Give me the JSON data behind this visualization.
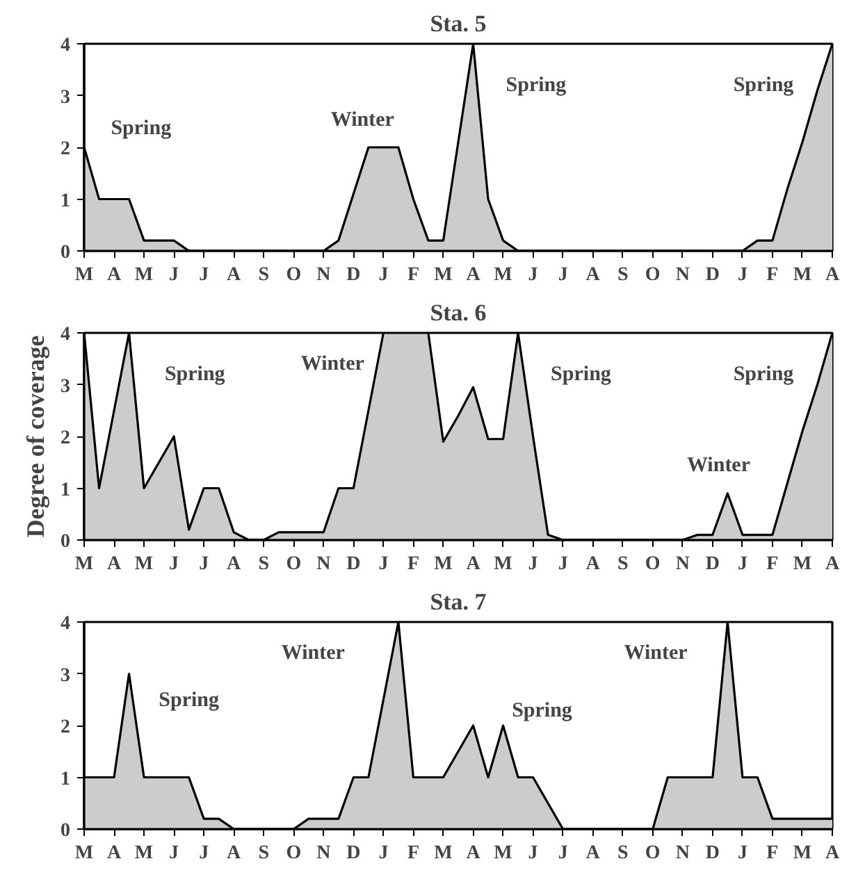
{
  "chart_data": [
    {
      "type": "area",
      "title": "Sta. 5",
      "grid": false,
      "color": "#cccccc",
      "categories": [
        "M",
        null,
        "A",
        null,
        "M",
        null,
        "J",
        null,
        "J",
        null,
        "A",
        null,
        "S",
        null,
        "O",
        null,
        "N",
        null,
        "D",
        null,
        "J",
        null,
        "F",
        null,
        "M",
        null,
        "A",
        null,
        "M",
        null,
        "J",
        null,
        "J",
        null,
        "A",
        null,
        "S",
        null,
        "O",
        null,
        "N",
        null,
        "D",
        null,
        "J",
        null,
        "F",
        null,
        "M",
        null,
        "A"
      ],
      "values": [
        2,
        1,
        1,
        1,
        0.2,
        0.2,
        0.2,
        0,
        0,
        0,
        0,
        0,
        0,
        0,
        0,
        0,
        0,
        0.2,
        1.1,
        2,
        2,
        2,
        1,
        0.2,
        0.2,
        2.1,
        4,
        1,
        0.2,
        0,
        0,
        0,
        0,
        0,
        0,
        0,
        0,
        0,
        0,
        0,
        0,
        0,
        0,
        0,
        0,
        0.2,
        0.2,
        1.2,
        2.1,
        3.1,
        4
      ],
      "ylim": [
        0,
        4
      ],
      "yticks": [
        0,
        1,
        2,
        3,
        4
      ],
      "annotations": [
        "Spring",
        "Winter",
        "Spring",
        "Spring"
      ]
    },
    {
      "type": "area",
      "title": "Sta. 6",
      "ylabel": "Degree of coverage",
      "grid": false,
      "color": "#cccccc",
      "categories": [
        "M",
        null,
        "A",
        null,
        "M",
        null,
        "J",
        null,
        "J",
        null,
        "A",
        null,
        "S",
        null,
        "O",
        null,
        "N",
        null,
        "D",
        null,
        "J",
        null,
        "F",
        null,
        "M",
        null,
        "A",
        null,
        "M",
        null,
        "J",
        null,
        "J",
        null,
        "A",
        null,
        "S",
        null,
        "O",
        null,
        "N",
        null,
        "D",
        null,
        "J",
        null,
        "F",
        null,
        "M",
        null,
        "A"
      ],
      "values": [
        4,
        1,
        2.5,
        4,
        1,
        1.5,
        2,
        0.2,
        1,
        1,
        0.15,
        0,
        0,
        0.15,
        0.15,
        0.15,
        0.15,
        1,
        1,
        2.5,
        4,
        4,
        4,
        4,
        1.9,
        2.4,
        2.95,
        1.95,
        1.95,
        4,
        2,
        0.1,
        0,
        0,
        0,
        0,
        0,
        0,
        0,
        0,
        0,
        0.1,
        0.1,
        0.9,
        0.1,
        0.1,
        0.1,
        1.1,
        2.1,
        3,
        4
      ],
      "ylim": [
        0,
        4
      ],
      "yticks": [
        0,
        1,
        2,
        3,
        4
      ],
      "annotations": [
        "Spring",
        "Winter",
        "Spring",
        "Spring",
        "Winter"
      ]
    },
    {
      "type": "area",
      "title": "Sta. 7",
      "grid": false,
      "color": "#cccccc",
      "categories": [
        "M",
        null,
        "A",
        null,
        "M",
        null,
        "J",
        null,
        "J",
        null,
        "A",
        null,
        "S",
        null,
        "O",
        null,
        "N",
        null,
        "D",
        null,
        "J",
        null,
        "F",
        null,
        "M",
        null,
        "A",
        null,
        "M",
        null,
        "J",
        null,
        "J",
        null,
        "A",
        null,
        "S",
        null,
        "O",
        null,
        "N",
        null,
        "D",
        null,
        "J",
        null,
        "F",
        null,
        "M",
        null,
        "A"
      ],
      "values": [
        1,
        1,
        1,
        3,
        1,
        1,
        1,
        1,
        0.2,
        0.2,
        0,
        0,
        0,
        0,
        0,
        0.2,
        0.2,
        0.2,
        1,
        1,
        2.5,
        4,
        1,
        1,
        1,
        1.5,
        2,
        1,
        2,
        1,
        1,
        0.5,
        0,
        0,
        0,
        0,
        0,
        0,
        0,
        1,
        1,
        1,
        1,
        4,
        1,
        1,
        0.2,
        0.2,
        0.2,
        0.2,
        0.2
      ],
      "ylim": [
        0,
        4
      ],
      "yticks": [
        0,
        1,
        2,
        3,
        4
      ],
      "annotations": [
        "Spring",
        "Winter",
        "Spring",
        "Winter"
      ]
    }
  ]
}
